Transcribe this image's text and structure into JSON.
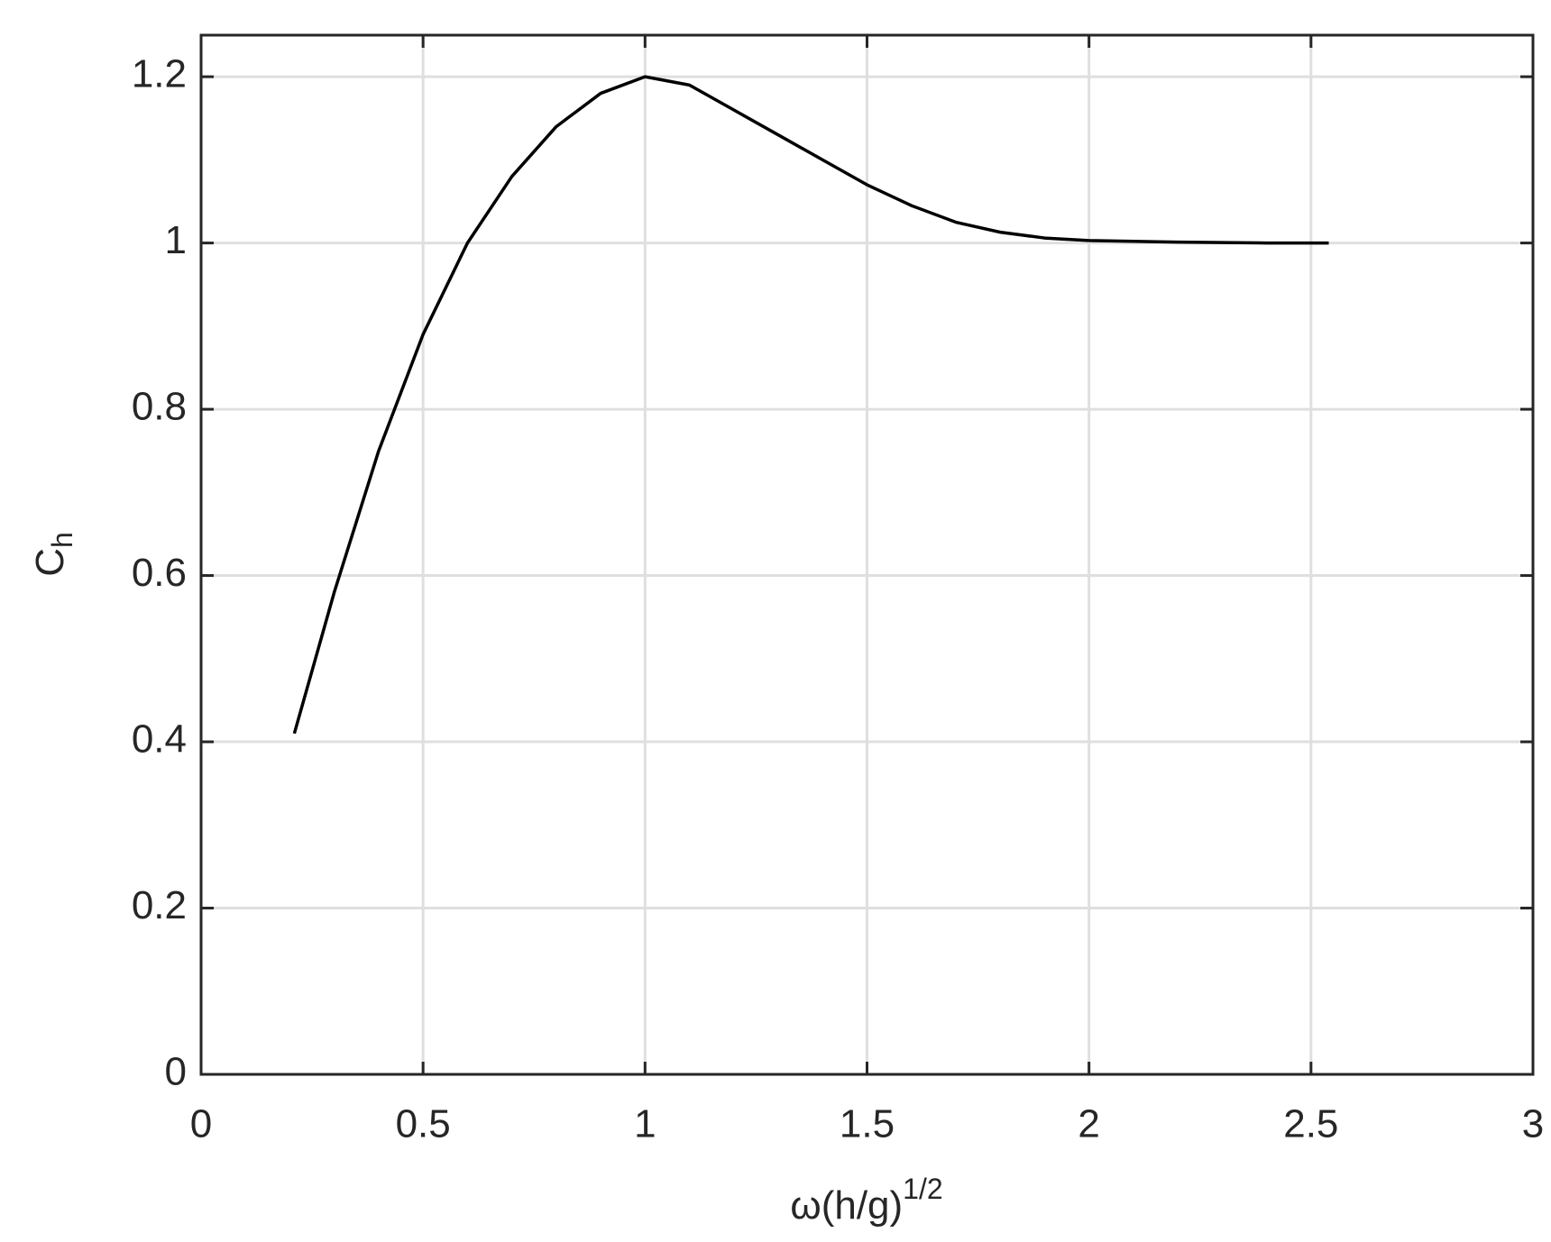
{
  "chart_data": {
    "type": "line",
    "xlabel": {
      "text": "ω(h/g)",
      "superscript": "1/2"
    },
    "ylabel": {
      "text": "C",
      "subscript": "h"
    },
    "x": [
      0.21,
      0.3,
      0.4,
      0.5,
      0.6,
      0.7,
      0.8,
      0.9,
      1.0,
      1.1,
      1.2,
      1.3,
      1.4,
      1.5,
      1.6,
      1.7,
      1.8,
      1.9,
      2.0,
      2.2,
      2.4,
      2.54
    ],
    "series": [
      {
        "color": "#000000",
        "values": [
          0.41,
          0.58,
          0.75,
          0.89,
          1.0,
          1.08,
          1.14,
          1.18,
          1.2,
          1.19,
          1.16,
          1.13,
          1.1,
          1.07,
          1.045,
          1.025,
          1.013,
          1.006,
          1.003,
          1.001,
          1.0,
          1.0
        ]
      }
    ],
    "xlim": [
      0,
      3
    ],
    "ylim": [
      0,
      1.25
    ],
    "xticks": [
      0,
      0.5,
      1,
      1.5,
      2,
      2.5,
      3
    ],
    "yticks": [
      0,
      0.2,
      0.4,
      0.6,
      0.8,
      1,
      1.2
    ],
    "grid": true
  }
}
